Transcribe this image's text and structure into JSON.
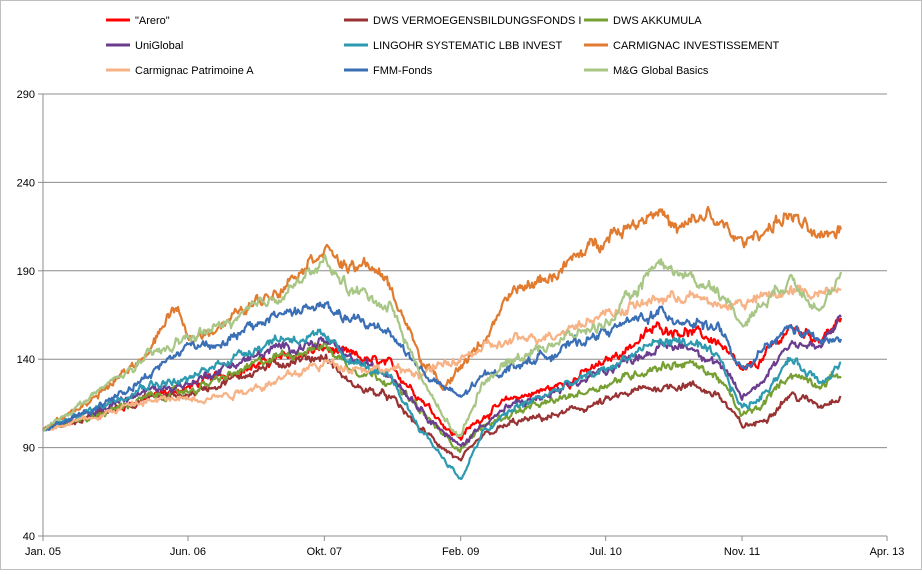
{
  "chart_data": {
    "type": "line",
    "title": "",
    "xlabel": "",
    "ylabel": "",
    "ylim": [
      40,
      290
    ],
    "yticks": [
      40,
      90,
      140,
      190,
      240,
      290
    ],
    "xlim": [
      2005.0,
      2013.25
    ],
    "xticks": [
      {
        "label": "Jan. 05",
        "t": 2005.0
      },
      {
        "label": "Jun. 06",
        "t": 2006.417
      },
      {
        "label": "Okt. 07",
        "t": 2007.75
      },
      {
        "label": "Feb. 09",
        "t": 2009.083
      },
      {
        "label": "Jul. 10",
        "t": 2010.5
      },
      {
        "label": "Nov. 11",
        "t": 2011.833
      },
      {
        "label": "Apr. 13",
        "t": 2013.25
      }
    ],
    "grid": true,
    "legend_position": "top",
    "series": [
      {
        "name": "\"Arero\"",
        "color": "#ff0000",
        "points": [
          [
            2005.0,
            100
          ],
          [
            2005.5,
            108
          ],
          [
            2006.0,
            118
          ],
          [
            2006.417,
            124
          ],
          [
            2006.8,
            132
          ],
          [
            2007.3,
            140
          ],
          [
            2007.75,
            146
          ],
          [
            2008.0,
            142
          ],
          [
            2008.4,
            136
          ],
          [
            2008.7,
            118
          ],
          [
            2009.0,
            98
          ],
          [
            2009.083,
            96
          ],
          [
            2009.3,
            108
          ],
          [
            2009.6,
            118
          ],
          [
            2010.0,
            124
          ],
          [
            2010.5,
            138
          ],
          [
            2010.8,
            150
          ],
          [
            2011.0,
            158
          ],
          [
            2011.3,
            156
          ],
          [
            2011.6,
            150
          ],
          [
            2011.833,
            132
          ],
          [
            2012.0,
            138
          ],
          [
            2012.3,
            158
          ],
          [
            2012.6,
            152
          ],
          [
            2012.8,
            162
          ]
        ]
      },
      {
        "name": "DWS VERMOEGENSBILDUNGSFONDS  I",
        "color": "#993333",
        "points": [
          [
            2005.0,
            100
          ],
          [
            2005.5,
            108
          ],
          [
            2006.0,
            118
          ],
          [
            2006.417,
            120
          ],
          [
            2006.8,
            128
          ],
          [
            2007.3,
            138
          ],
          [
            2007.75,
            142
          ],
          [
            2008.0,
            126
          ],
          [
            2008.4,
            118
          ],
          [
            2008.7,
            100
          ],
          [
            2009.0,
            86
          ],
          [
            2009.083,
            82
          ],
          [
            2009.3,
            96
          ],
          [
            2009.6,
            104
          ],
          [
            2010.0,
            108
          ],
          [
            2010.5,
            116
          ],
          [
            2010.8,
            122
          ],
          [
            2011.0,
            124
          ],
          [
            2011.3,
            126
          ],
          [
            2011.6,
            120
          ],
          [
            2011.833,
            102
          ],
          [
            2012.0,
            104
          ],
          [
            2012.3,
            120
          ],
          [
            2012.6,
            114
          ],
          [
            2012.8,
            120
          ]
        ]
      },
      {
        "name": "DWS AKKUMULA",
        "color": "#77a033",
        "points": [
          [
            2005.0,
            100
          ],
          [
            2005.5,
            108
          ],
          [
            2006.0,
            118
          ],
          [
            2006.417,
            122
          ],
          [
            2006.8,
            130
          ],
          [
            2007.3,
            142
          ],
          [
            2007.75,
            148
          ],
          [
            2008.0,
            136
          ],
          [
            2008.4,
            128
          ],
          [
            2008.7,
            110
          ],
          [
            2009.0,
            92
          ],
          [
            2009.083,
            90
          ],
          [
            2009.3,
            102
          ],
          [
            2009.6,
            110
          ],
          [
            2010.0,
            116
          ],
          [
            2010.5,
            126
          ],
          [
            2010.8,
            132
          ],
          [
            2011.0,
            136
          ],
          [
            2011.3,
            138
          ],
          [
            2011.6,
            130
          ],
          [
            2011.833,
            108
          ],
          [
            2012.0,
            112
          ],
          [
            2012.3,
            132
          ],
          [
            2012.6,
            126
          ],
          [
            2012.8,
            132
          ]
        ]
      },
      {
        "name": "UniGlobal",
        "color": "#6a3d8f",
        "points": [
          [
            2005.0,
            100
          ],
          [
            2005.5,
            110
          ],
          [
            2006.0,
            122
          ],
          [
            2006.417,
            126
          ],
          [
            2006.8,
            136
          ],
          [
            2007.3,
            146
          ],
          [
            2007.75,
            150
          ],
          [
            2008.0,
            140
          ],
          [
            2008.4,
            132
          ],
          [
            2008.7,
            112
          ],
          [
            2009.0,
            94
          ],
          [
            2009.083,
            90
          ],
          [
            2009.3,
            104
          ],
          [
            2009.6,
            114
          ],
          [
            2010.0,
            120
          ],
          [
            2010.5,
            134
          ],
          [
            2010.8,
            142
          ],
          [
            2011.0,
            146
          ],
          [
            2011.3,
            148
          ],
          [
            2011.6,
            138
          ],
          [
            2011.833,
            118
          ],
          [
            2012.0,
            126
          ],
          [
            2012.3,
            150
          ],
          [
            2012.6,
            146
          ],
          [
            2012.8,
            164
          ]
        ]
      },
      {
        "name": "LINGOHR SYSTEMATIC  LBB INVEST",
        "color": "#2e9ab0",
        "points": [
          [
            2005.0,
            100
          ],
          [
            2005.5,
            112
          ],
          [
            2006.0,
            126
          ],
          [
            2006.417,
            128
          ],
          [
            2006.8,
            140
          ],
          [
            2007.3,
            152
          ],
          [
            2007.75,
            152
          ],
          [
            2008.0,
            140
          ],
          [
            2008.4,
            128
          ],
          [
            2008.7,
            100
          ],
          [
            2009.0,
            78
          ],
          [
            2009.083,
            72
          ],
          [
            2009.3,
            98
          ],
          [
            2009.6,
            112
          ],
          [
            2010.0,
            122
          ],
          [
            2010.5,
            134
          ],
          [
            2010.8,
            144
          ],
          [
            2011.0,
            150
          ],
          [
            2011.3,
            150
          ],
          [
            2011.6,
            140
          ],
          [
            2011.833,
            112
          ],
          [
            2012.0,
            118
          ],
          [
            2012.3,
            140
          ],
          [
            2012.6,
            128
          ],
          [
            2012.8,
            138
          ]
        ]
      },
      {
        "name": "CARMIGNAC INVESTISSEMENT",
        "color": "#e07b30",
        "points": [
          [
            2005.0,
            100
          ],
          [
            2005.5,
            118
          ],
          [
            2006.0,
            142
          ],
          [
            2006.3,
            170
          ],
          [
            2006.417,
            150
          ],
          [
            2006.8,
            162
          ],
          [
            2007.3,
            180
          ],
          [
            2007.75,
            204
          ],
          [
            2008.0,
            190
          ],
          [
            2008.2,
            194
          ],
          [
            2008.4,
            180
          ],
          [
            2008.7,
            140
          ],
          [
            2008.9,
            125
          ],
          [
            2009.083,
            136
          ],
          [
            2009.3,
            150
          ],
          [
            2009.6,
            178
          ],
          [
            2010.0,
            188
          ],
          [
            2010.5,
            210
          ],
          [
            2010.8,
            218
          ],
          [
            2011.0,
            226
          ],
          [
            2011.2,
            212
          ],
          [
            2011.5,
            222
          ],
          [
            2011.833,
            205
          ],
          [
            2012.0,
            212
          ],
          [
            2012.3,
            222
          ],
          [
            2012.6,
            206
          ],
          [
            2012.8,
            215
          ]
        ]
      },
      {
        "name": "Carmignac Patrimoine A",
        "color": "#f7b285",
        "points": [
          [
            2005.0,
            100
          ],
          [
            2005.5,
            108
          ],
          [
            2006.0,
            116
          ],
          [
            2006.417,
            118
          ],
          [
            2006.8,
            120
          ],
          [
            2007.3,
            128
          ],
          [
            2007.75,
            138
          ],
          [
            2008.0,
            136
          ],
          [
            2008.4,
            134
          ],
          [
            2008.7,
            132
          ],
          [
            2009.0,
            138
          ],
          [
            2009.083,
            140
          ],
          [
            2009.3,
            146
          ],
          [
            2009.6,
            150
          ],
          [
            2010.0,
            155
          ],
          [
            2010.5,
            166
          ],
          [
            2010.8,
            170
          ],
          [
            2011.0,
            174
          ],
          [
            2011.3,
            176
          ],
          [
            2011.6,
            170
          ],
          [
            2011.833,
            172
          ],
          [
            2012.0,
            174
          ],
          [
            2012.3,
            178
          ],
          [
            2012.6,
            178
          ],
          [
            2012.8,
            182
          ]
        ]
      },
      {
        "name": "FMM-Fonds",
        "color": "#3b6fb5",
        "points": [
          [
            2005.0,
            100
          ],
          [
            2005.5,
            112
          ],
          [
            2006.0,
            130
          ],
          [
            2006.417,
            148
          ],
          [
            2006.8,
            150
          ],
          [
            2007.3,
            166
          ],
          [
            2007.75,
            170
          ],
          [
            2008.0,
            162
          ],
          [
            2008.4,
            156
          ],
          [
            2008.6,
            140
          ],
          [
            2008.8,
            128
          ],
          [
            2009.083,
            118
          ],
          [
            2009.3,
            130
          ],
          [
            2009.6,
            136
          ],
          [
            2010.0,
            144
          ],
          [
            2010.5,
            156
          ],
          [
            2010.8,
            162
          ],
          [
            2011.0,
            166
          ],
          [
            2011.3,
            162
          ],
          [
            2011.6,
            158
          ],
          [
            2011.833,
            132
          ],
          [
            2012.0,
            142
          ],
          [
            2012.3,
            158
          ],
          [
            2012.6,
            150
          ],
          [
            2012.8,
            150
          ]
        ]
      },
      {
        "name": "M&G Global Basics",
        "color": "#a8c686",
        "points": [
          [
            2005.0,
            100
          ],
          [
            2005.5,
            120
          ],
          [
            2006.0,
            140
          ],
          [
            2006.417,
            152
          ],
          [
            2006.8,
            160
          ],
          [
            2007.3,
            176
          ],
          [
            2007.75,
            194
          ],
          [
            2008.0,
            180
          ],
          [
            2008.4,
            170
          ],
          [
            2008.7,
            130
          ],
          [
            2008.9,
            108
          ],
          [
            2009.083,
            96
          ],
          [
            2009.3,
            128
          ],
          [
            2009.6,
            140
          ],
          [
            2010.0,
            150
          ],
          [
            2010.5,
            160
          ],
          [
            2010.8,
            178
          ],
          [
            2011.0,
            196
          ],
          [
            2011.3,
            186
          ],
          [
            2011.6,
            180
          ],
          [
            2011.833,
            160
          ],
          [
            2012.0,
            170
          ],
          [
            2012.3,
            186
          ],
          [
            2012.6,
            170
          ],
          [
            2012.8,
            184
          ]
        ]
      }
    ]
  }
}
